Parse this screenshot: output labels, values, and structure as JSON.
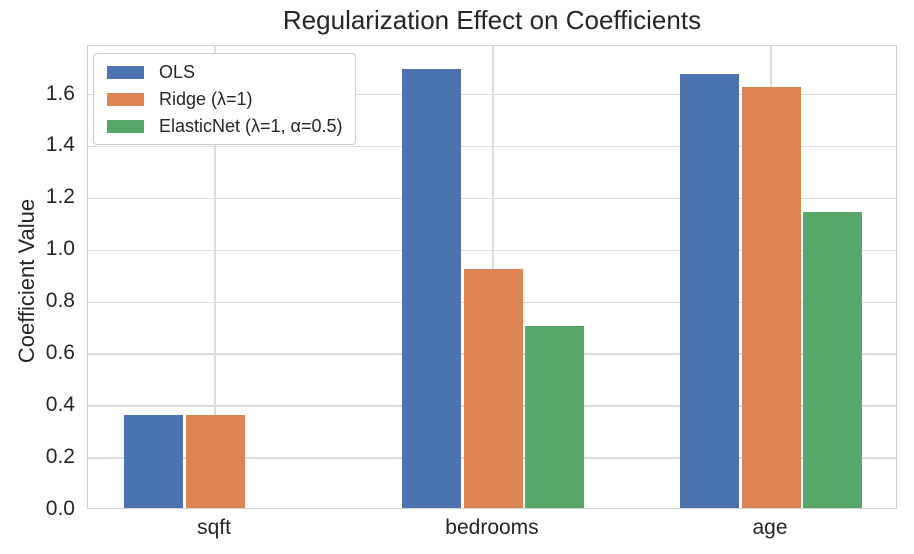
{
  "chart_data": {
    "type": "bar",
    "title": "Regularization Effect on Coefficients",
    "xlabel": "",
    "ylabel": "Coefficient Value",
    "categories": [
      "sqft",
      "bedrooms",
      "age"
    ],
    "series": [
      {
        "name": "OLS",
        "color": "#4C72B0",
        "values": [
          0.36,
          1.69,
          1.67
        ]
      },
      {
        "name": "Ridge (λ=1)",
        "color": "#DD8452",
        "values": [
          0.36,
          0.92,
          1.62
        ]
      },
      {
        "name": "ElasticNet (λ=1, α=0.5)",
        "color": "#55A868",
        "values": [
          0.0,
          0.7,
          1.14
        ]
      }
    ],
    "ylim": [
      0,
      1.787
    ],
    "yticks": [
      0.0,
      0.2,
      0.4,
      0.6,
      0.8,
      1.0,
      1.2,
      1.4,
      1.6
    ],
    "ytick_labels": [
      "0.0",
      "0.2",
      "0.4",
      "0.6",
      "0.8",
      "1.0",
      "1.2",
      "1.4",
      "1.6"
    ],
    "grid": true,
    "grid_color": "#dcdcdc",
    "background": "#ffffff",
    "text_color": "#262626",
    "legend_position": "upper left"
  }
}
